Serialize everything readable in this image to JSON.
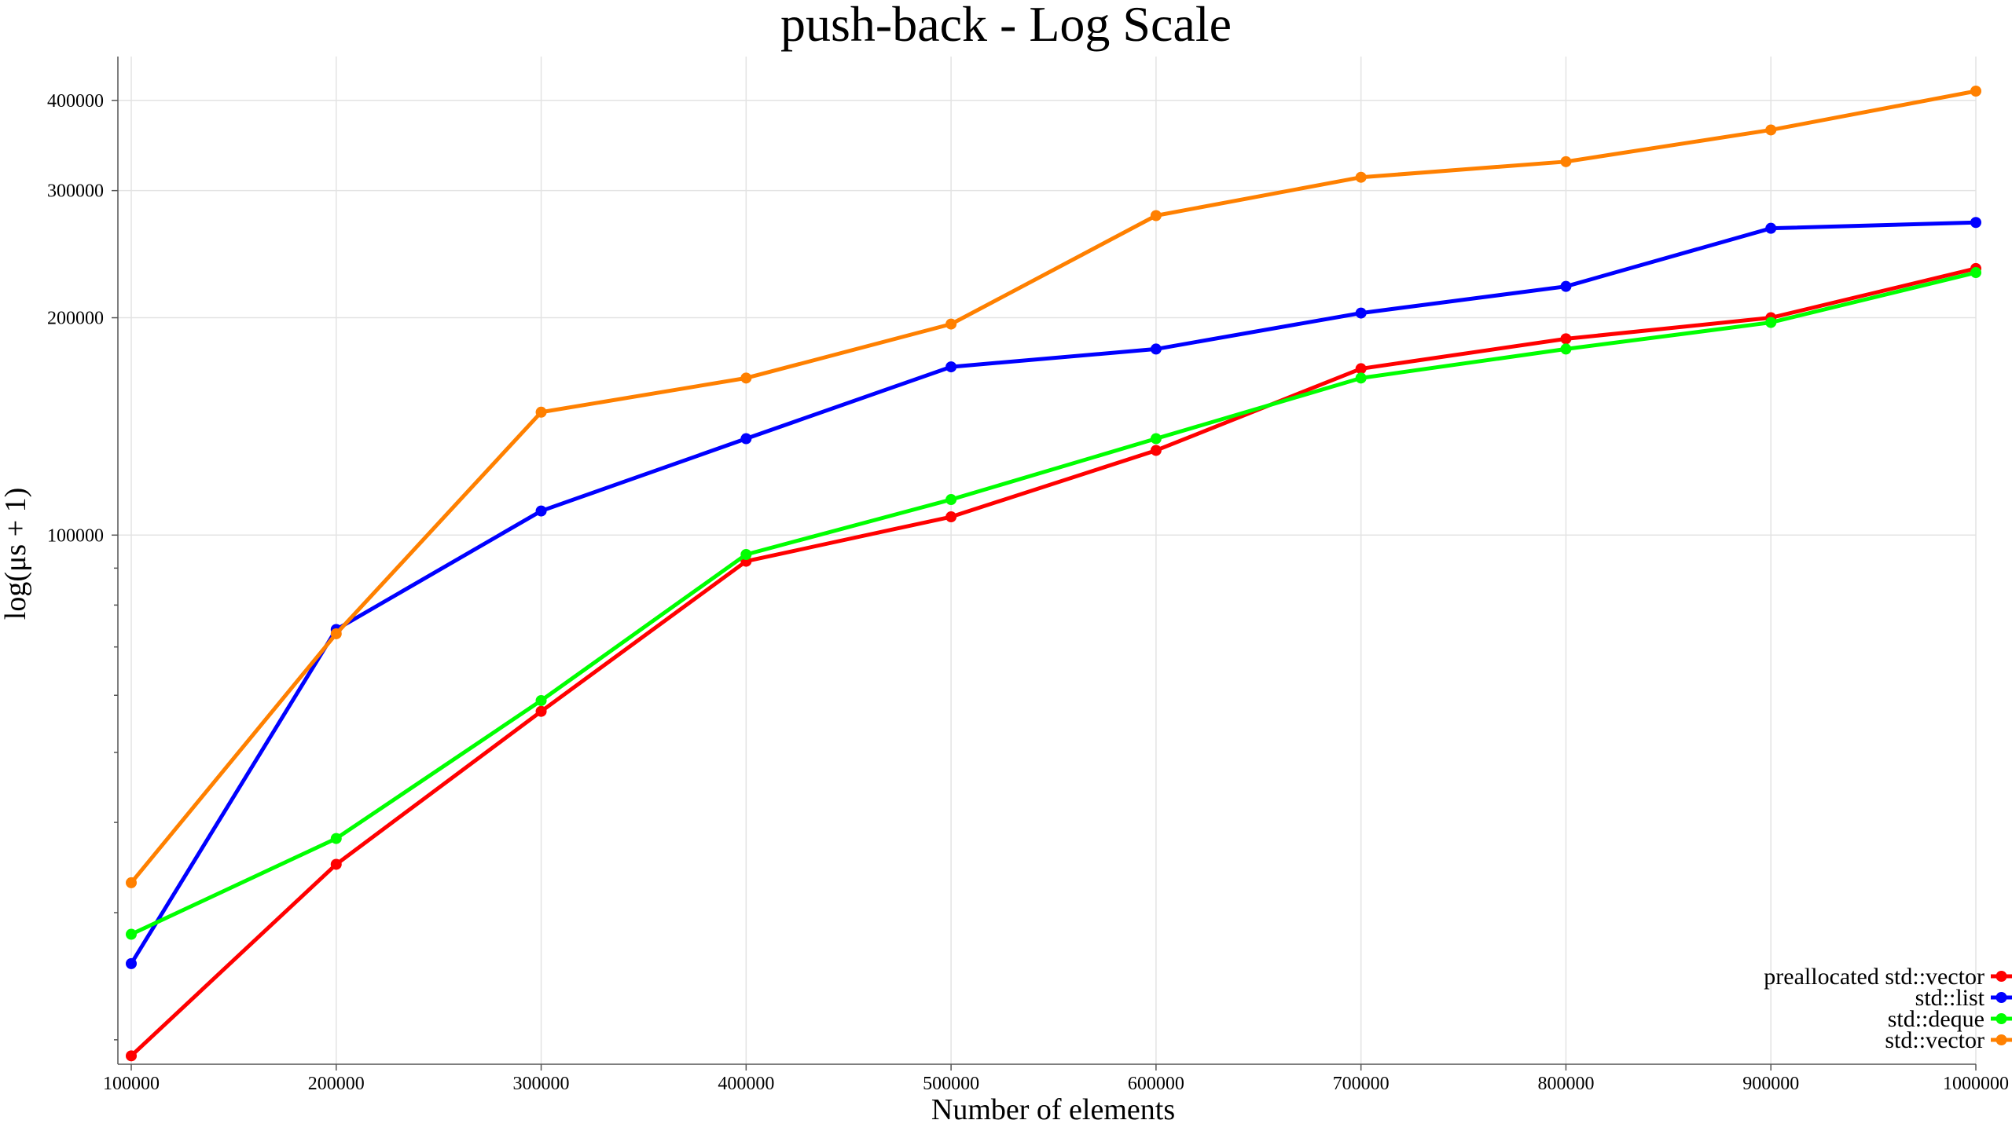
{
  "chart_data": {
    "type": "line",
    "title": "push-back - Log Scale",
    "xlabel": "Number of elements",
    "ylabel": "log(μs + 1)",
    "y_scale": "log",
    "grid": true,
    "legend_position": "bottom-right",
    "x": [
      100000,
      200000,
      300000,
      400000,
      500000,
      600000,
      700000,
      800000,
      900000,
      1000000
    ],
    "x_tick_labels": [
      "100000",
      "200000",
      "300000",
      "400000",
      "500000",
      "600000",
      "700000",
      "800000",
      "900000",
      "1000000"
    ],
    "y_ticks": [
      100000,
      200000,
      300000,
      400000
    ],
    "y_tick_labels": [
      "100000",
      "200000",
      "300000",
      "400000"
    ],
    "xlim": [
      100000,
      1000000
    ],
    "ylim": [
      18500,
      460000
    ],
    "series": [
      {
        "name": "preallocated std::vector",
        "color": "#ff0000",
        "values": [
          19000,
          35000,
          57000,
          92000,
          106000,
          131000,
          170000,
          187000,
          200000,
          234000
        ]
      },
      {
        "name": "std::list",
        "color": "#0000ff",
        "values": [
          25500,
          74000,
          108000,
          136000,
          171000,
          181000,
          203000,
          221000,
          266000,
          271000
        ]
      },
      {
        "name": "std::deque",
        "color": "#00ff00",
        "values": [
          28000,
          38000,
          59000,
          94000,
          112000,
          136000,
          165000,
          181000,
          197000,
          231000
        ]
      },
      {
        "name": "std::vector",
        "color": "#ff8000",
        "values": [
          33000,
          73000,
          148000,
          165000,
          196000,
          277000,
          313000,
          329000,
          364000,
          412000
        ]
      }
    ]
  }
}
